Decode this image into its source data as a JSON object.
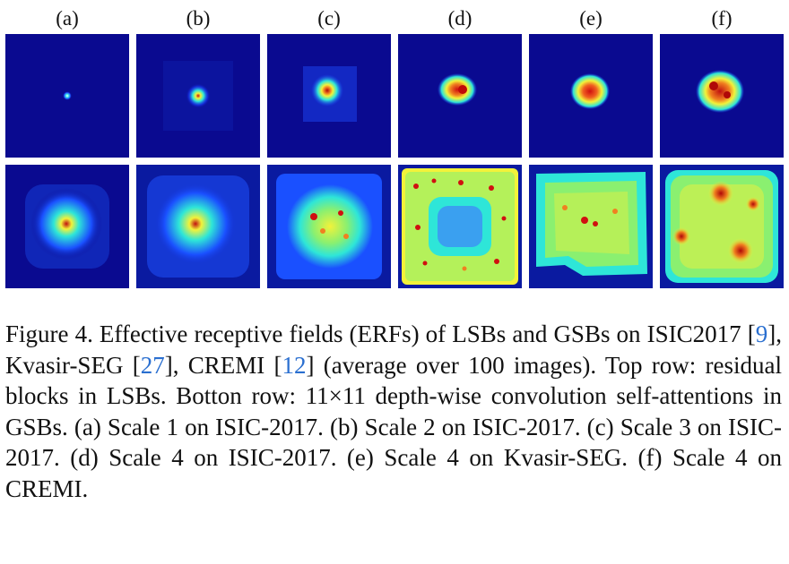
{
  "figure": {
    "columns": [
      "(a)",
      "(b)",
      "(c)",
      "(d)",
      "(e)",
      "(f)"
    ],
    "rows": [
      "Top row: residual blocks in LSBs",
      "Bottom row: 11×11 depth-wise convolution self-attentions in GSBs"
    ],
    "colors": {
      "background": "#0a0a90",
      "low": "#1a3cff",
      "mid": "#2ee6d8",
      "high": "#f2f23a",
      "peak": "#d81010"
    },
    "caption": {
      "p1": "Figure 4. Effective receptive fields (ERFs) of LSBs and GSBs on ISIC2017 [",
      "ref1": "9",
      "p2": "], Kvasir-SEG [",
      "ref2": "27",
      "p3": "], CREMI [",
      "ref3": "12",
      "p4": "] (average over 100 images). Top row: residual blocks in LSBs. Botton row: 11×11 depth-wise convolution self-attentions in GSBs. (a) Scale 1 on ISIC-2017. (b) Scale 2 on ISIC-2017. (c) Scale 3 on ISIC-2017. (d) Scale 4 on ISIC-2017. (e) Scale 4 on Kvasir-SEG. (f) Scale 4 on CREMI."
    }
  }
}
